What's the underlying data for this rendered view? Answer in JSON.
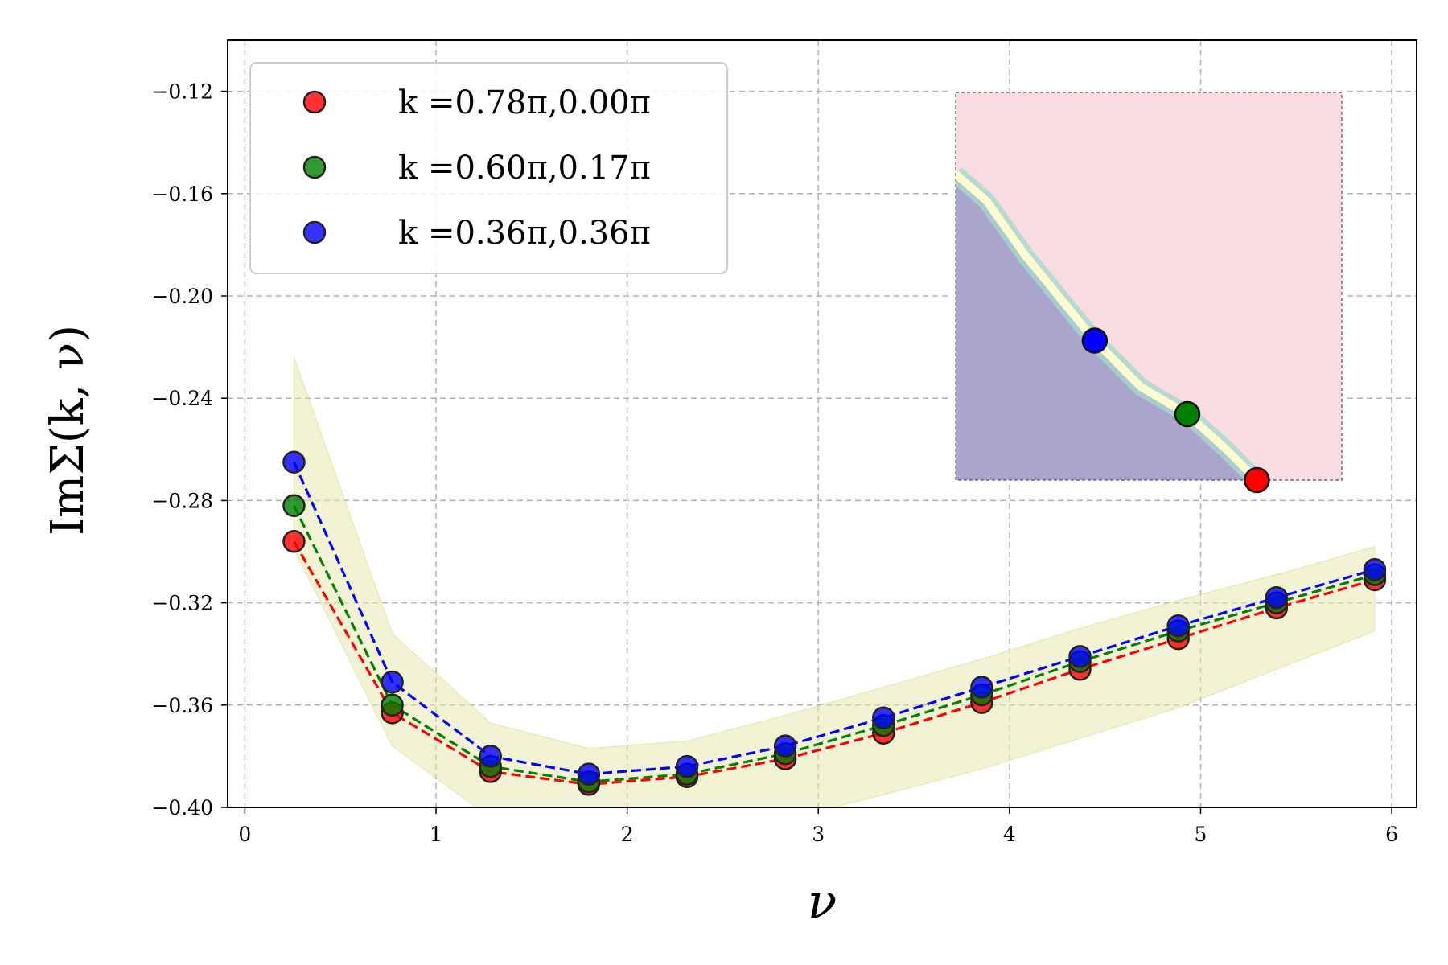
{
  "chart_data": {
    "type": "scatter",
    "xlabel": "ν",
    "ylabel": "ImΣ(k, ν)",
    "xlim": [
      -0.09,
      6.13
    ],
    "ylim": [
      -0.4,
      -0.1
    ],
    "xticks": [
      0,
      1,
      2,
      3,
      4,
      5,
      6
    ],
    "xtick_labels": [
      "0",
      "1",
      "2",
      "3",
      "4",
      "5",
      "6"
    ],
    "yticks": [
      -0.12,
      -0.16,
      -0.2,
      -0.24,
      -0.28,
      -0.32,
      -0.36,
      -0.4
    ],
    "ytick_labels": [
      "−0.12",
      "−0.16",
      "−0.20",
      "−0.24",
      "−0.28",
      "−0.32",
      "−0.36",
      "−0.40"
    ],
    "grid": true,
    "legend_position": "top-left",
    "x": [
      0.257,
      0.771,
      1.285,
      1.799,
      2.313,
      2.827,
      3.341,
      3.855,
      4.369,
      4.883,
      5.397,
      5.911
    ],
    "series": [
      {
        "name": "k =0.78π,0.00π",
        "color": "#ff0000",
        "values": [
          -0.296,
          -0.363,
          -0.386,
          -0.391,
          -0.388,
          -0.381,
          -0.371,
          -0.359,
          -0.346,
          -0.334,
          -0.322,
          -0.311
        ]
      },
      {
        "name": "k =0.60π,0.17π",
        "color": "#008000",
        "values": [
          -0.282,
          -0.36,
          -0.384,
          -0.39,
          -0.387,
          -0.379,
          -0.368,
          -0.356,
          -0.343,
          -0.331,
          -0.32,
          -0.309
        ]
      },
      {
        "name": "k =0.36π,0.36π",
        "color": "#0000ff",
        "values": [
          -0.265,
          -0.351,
          -0.38,
          -0.387,
          -0.384,
          -0.376,
          -0.365,
          -0.353,
          -0.341,
          -0.329,
          -0.318,
          -0.307
        ]
      }
    ],
    "band": {
      "color": "#e8e8b0",
      "upper": [
        -0.224,
        -0.332,
        -0.367,
        -0.377,
        -0.374,
        -0.364,
        -0.353,
        -0.342,
        -0.33,
        -0.319,
        -0.309,
        -0.298
      ],
      "lower": [
        -0.299,
        -0.376,
        -0.404,
        -0.412,
        -0.413,
        -0.405,
        -0.395,
        -0.385,
        -0.373,
        -0.361,
        -0.346,
        -0.331
      ]
    },
    "inset": {
      "type": "heatmap",
      "gradient": [
        "#3b2f7a",
        "#5e8fbf",
        "#8fd0c0",
        "#fffcc0",
        "#f6a0a8"
      ],
      "points": [
        {
          "color": "#ff0000",
          "kx": 0.78,
          "ky": 0.0
        },
        {
          "color": "#008000",
          "kx": 0.6,
          "ky": 0.17
        },
        {
          "color": "#0000ff",
          "kx": 0.36,
          "ky": 0.36
        }
      ]
    }
  }
}
